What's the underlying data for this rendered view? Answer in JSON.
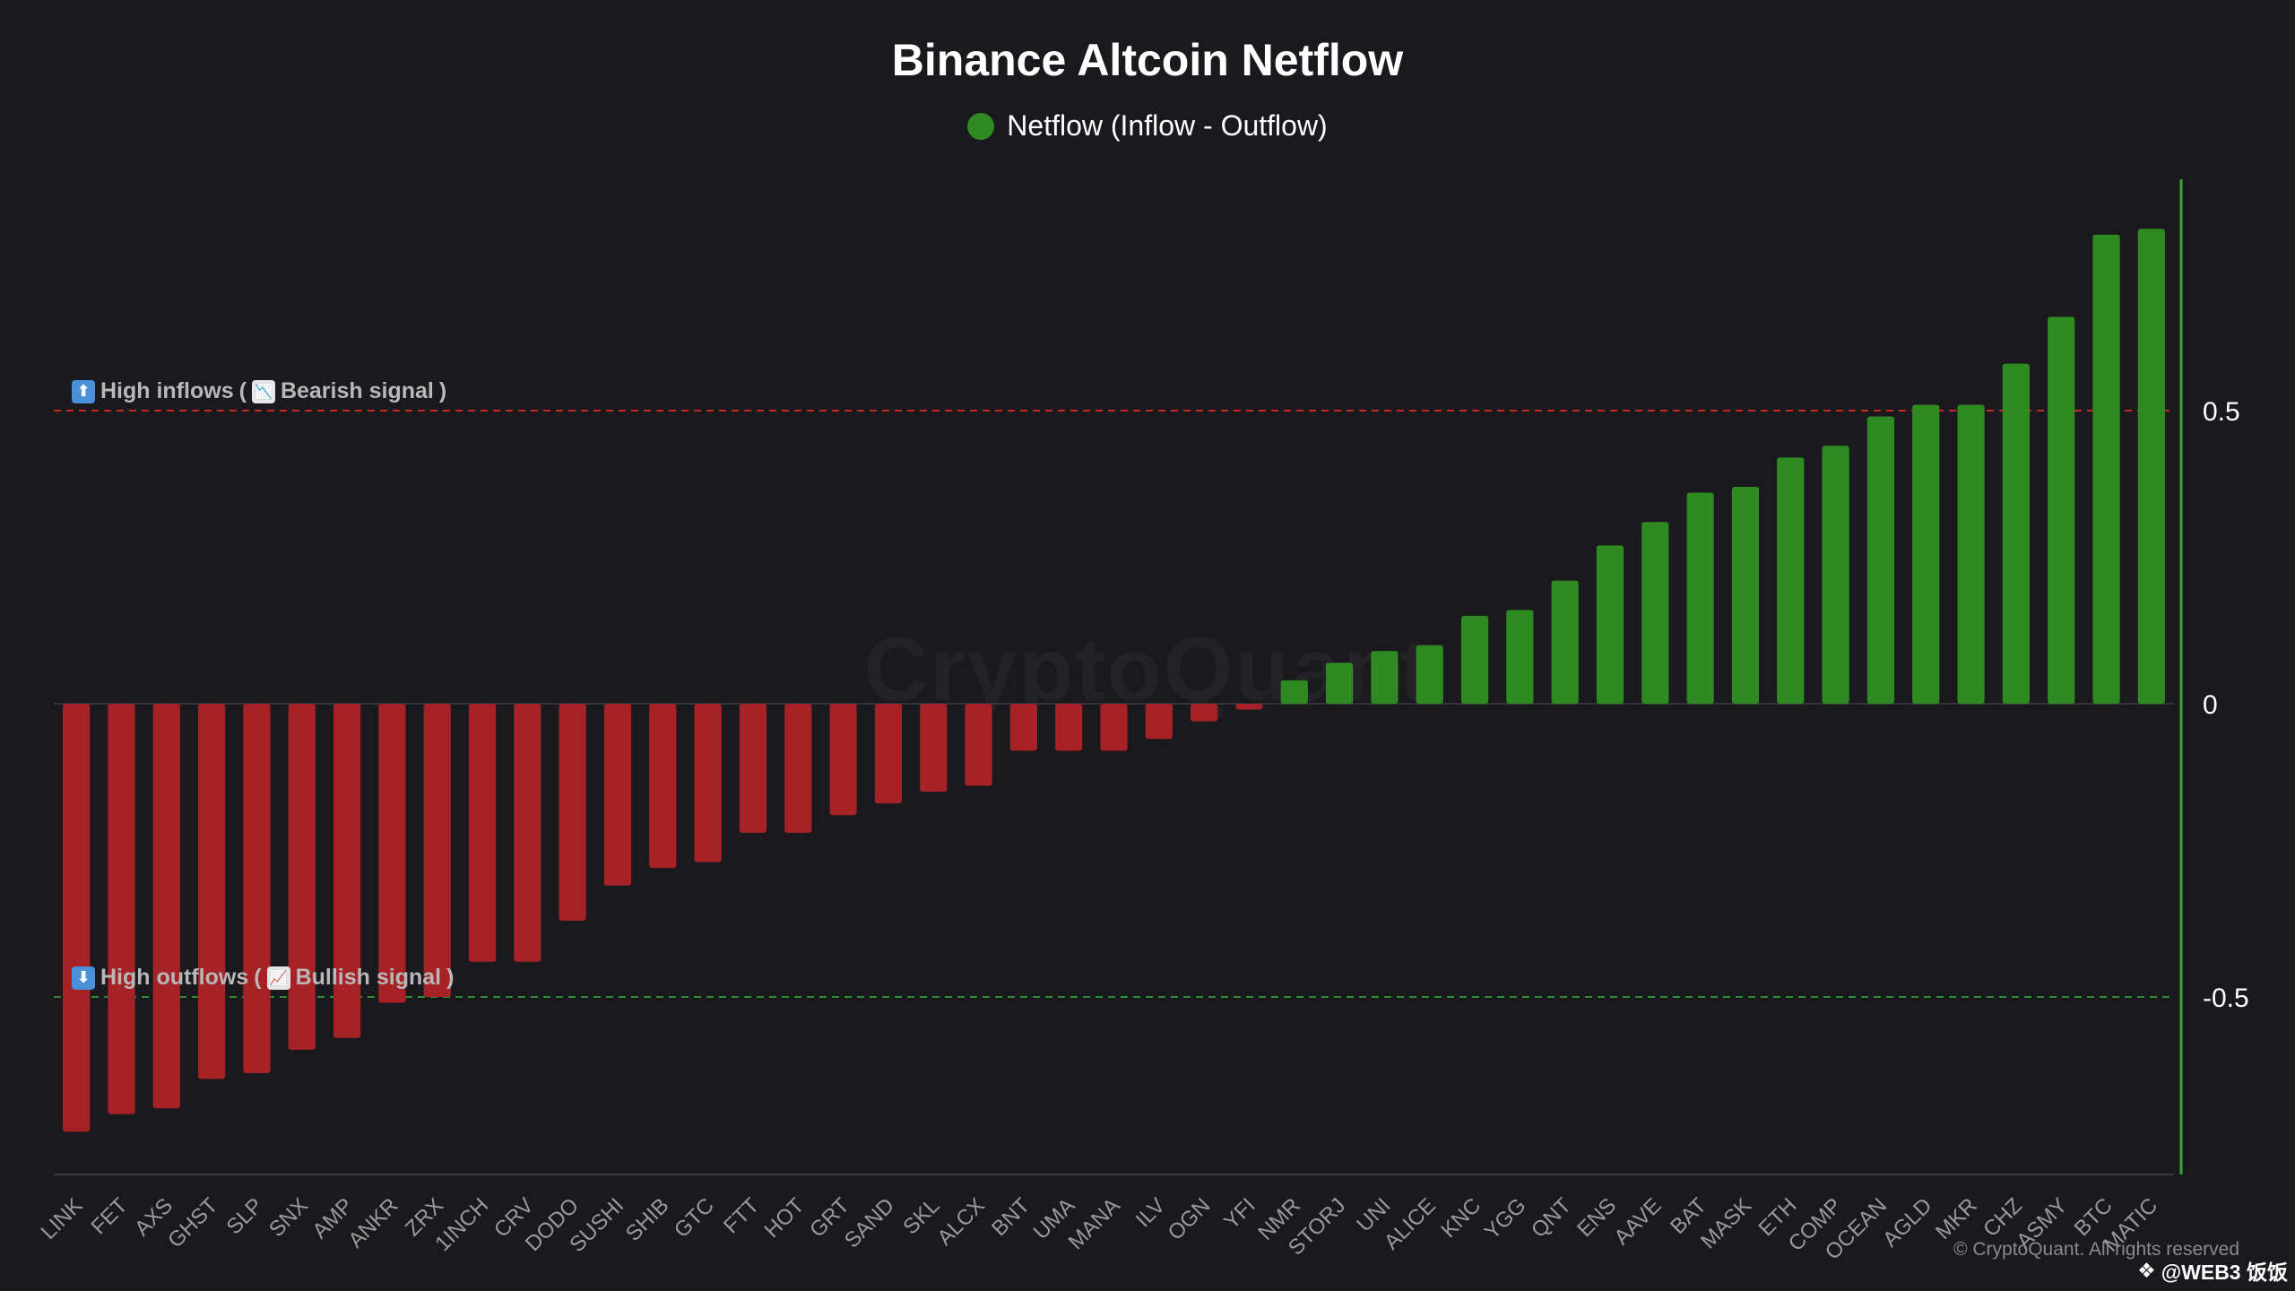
{
  "chart_data": {
    "type": "bar",
    "title": "Binance Altcoin Netflow",
    "legend": {
      "label": "Netflow (Inflow - Outflow)",
      "position": "top-center"
    },
    "categories": [
      "LINK",
      "FET",
      "AXS",
      "GHST",
      "SLP",
      "SNX",
      "AMP",
      "ANKR",
      "ZRX",
      "1INCH",
      "CRV",
      "DODO",
      "SUSHI",
      "SHIB",
      "GTC",
      "FTT",
      "HOT",
      "GRT",
      "SAND",
      "SKL",
      "ALCX",
      "BNT",
      "UMA",
      "MANA",
      "ILV",
      "OGN",
      "YFI",
      "NMR",
      "STORJ",
      "UNI",
      "ALICE",
      "KNC",
      "YGG",
      "QNT",
      "ENS",
      "AAVE",
      "BAT",
      "MASK",
      "ETH",
      "COMP",
      "OCEAN",
      "AGLD",
      "MKR",
      "CHZ",
      "ASMY",
      "BTC",
      "MATIC"
    ],
    "values": [
      -0.73,
      -0.7,
      -0.69,
      -0.64,
      -0.63,
      -0.59,
      -0.57,
      -0.51,
      -0.5,
      -0.44,
      -0.44,
      -0.37,
      -0.31,
      -0.28,
      -0.27,
      -0.22,
      -0.22,
      -0.19,
      -0.17,
      -0.15,
      -0.14,
      -0.08,
      -0.08,
      -0.08,
      -0.06,
      -0.03,
      -0.01,
      0.04,
      0.07,
      0.09,
      0.1,
      0.15,
      0.16,
      0.21,
      0.27,
      0.31,
      0.36,
      0.37,
      0.42,
      0.44,
      0.49,
      0.51,
      0.51,
      0.58,
      0.66,
      0.8,
      0.81
    ],
    "ylim": [
      -0.8,
      0.9
    ],
    "yticks": [
      0.5,
      0,
      -0.5
    ],
    "ytick_labels": [
      "0.5",
      "0",
      "-0.5"
    ],
    "xlabel": "",
    "ylabel": "",
    "y_axis_side": "right",
    "reference_lines": [
      {
        "value": 0.5,
        "color": "#c62828",
        "style": "dashed"
      },
      {
        "value": -0.5,
        "color": "#2e8b2e",
        "style": "dashed"
      }
    ]
  },
  "annotations": {
    "inflow": {
      "text": "High inflows",
      "paren_open": "(",
      "signal": "Bearish signal",
      "paren_close": ")"
    },
    "outflow": {
      "text": "High outflows",
      "paren_open": "(",
      "signal": "Bullish signal",
      "paren_close": ")"
    }
  },
  "icons": {
    "up": "⬆",
    "down": "⬇",
    "bear": "📉",
    "bull": "📈"
  },
  "watermark": "CryptoQuant",
  "copyright": "© CryptoQuant. All rights reserved",
  "credit": {
    "symbol": "❖",
    "text": "@WEB3 饭饭"
  },
  "colors": {
    "background": "#1a1a1e",
    "positive": "#2e8b22",
    "negative": "#a62226",
    "axis": "#3aa335",
    "zero_line": "#333338"
  }
}
